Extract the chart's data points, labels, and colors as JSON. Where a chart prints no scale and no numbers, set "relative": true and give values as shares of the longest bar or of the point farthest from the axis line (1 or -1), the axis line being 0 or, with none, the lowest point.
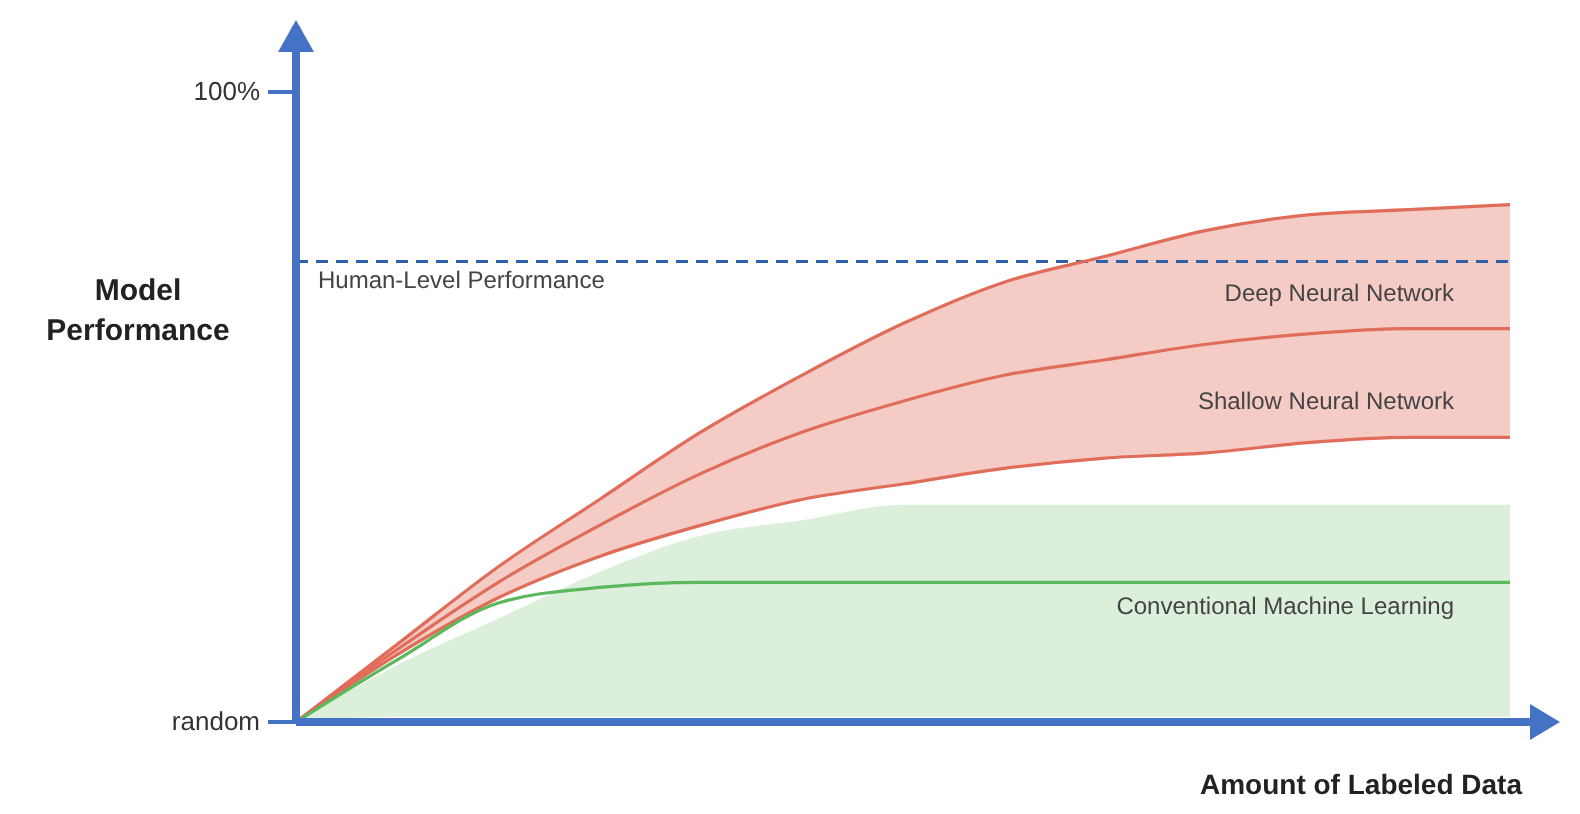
{
  "chart_data": {
    "type": "line",
    "xlabel": "Amount of Labeled Data",
    "ylabel": "Model Performance",
    "relative": true,
    "categories": [
      null,
      null,
      null,
      null,
      null,
      null,
      null,
      null,
      null,
      null,
      null,
      null,
      null
    ],
    "series": [
      {
        "color": "#e06c5a",
        "values": [
          0,
          0.15,
          0.3,
          0.43,
          0.56,
          0.67,
          0.77,
          0.85,
          0.9,
          0.95,
          0.98,
          0.99,
          1
        ]
      },
      {
        "name": "Deep Neural Network",
        "color": "#e06c5a",
        "values": [
          0,
          0.14,
          0.27,
          0.38,
          0.48,
          0.56,
          0.62,
          0.67,
          0.7,
          0.73,
          0.75,
          0.76,
          0.76
        ],
        "lower": [
          0,
          0.13,
          0.24,
          0.32,
          0.38,
          0.43,
          0.46,
          0.49,
          0.51,
          0.52,
          0.54,
          0.55,
          0.55
        ],
        "upper": [
          0,
          0.15,
          0.3,
          0.43,
          0.56,
          0.67,
          0.77,
          0.85,
          0.9,
          0.95,
          0.98,
          0.99,
          1
        ]
      },
      {
        "name": "Shallow Neural Network",
        "color": "#e06c5a",
        "values": [
          0,
          0.13,
          0.24,
          0.32,
          0.38,
          0.43,
          0.46,
          0.49,
          0.51,
          0.52,
          0.54,
          0.55,
          0.55
        ]
      },
      {
        "name": "Conventional Machine Learning",
        "color": "#5cb85c",
        "values": [
          0,
          0.12,
          0.23,
          0.26,
          0.27,
          0.27,
          0.27,
          0.27,
          0.27,
          0.27,
          0.27,
          0.27,
          0.27
        ],
        "lower": [
          0,
          0.01,
          0.01,
          0.01,
          0.01,
          0.01,
          0.01,
          0.01,
          0.01,
          0.01,
          0.01,
          0.01,
          0.01
        ],
        "upper": [
          0,
          0.11,
          0.2,
          0.29,
          0.36,
          0.39,
          0.42,
          0.42,
          0.42,
          0.42,
          0.42,
          0.42,
          0.42
        ]
      }
    ],
    "annotations": [
      "random",
      "100%"
    ],
    "ref_lines": [
      {
        "axis": "y",
        "value": 0.89,
        "label": "Human-Level Performance",
        "color": "#2e5fa8",
        "line_style": "dashed"
      }
    ],
    "grid": false,
    "legend": false
  }
}
